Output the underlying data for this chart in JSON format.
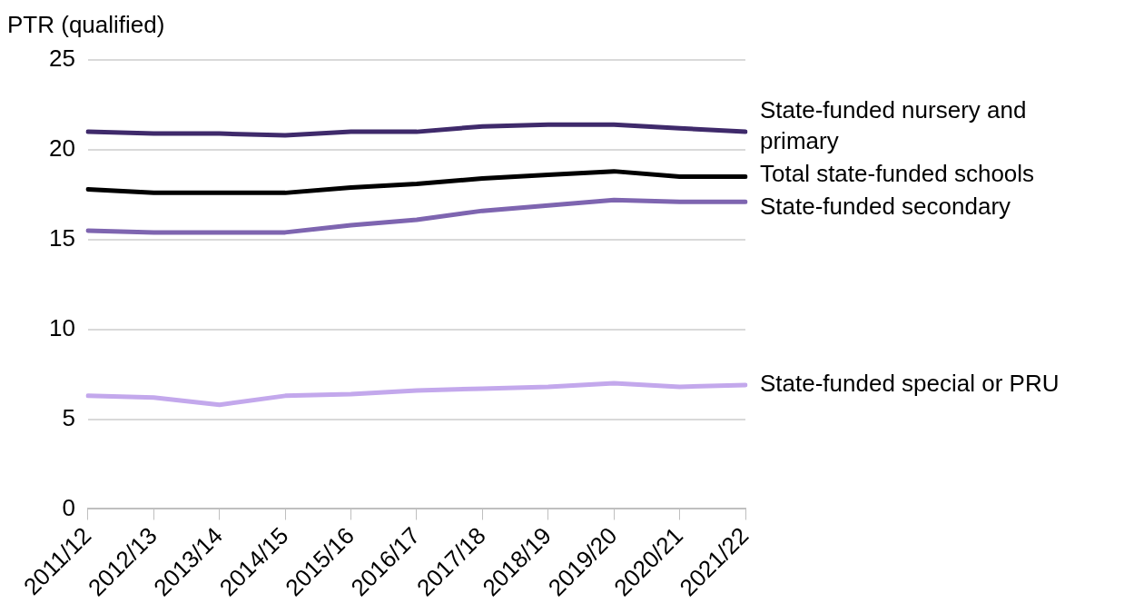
{
  "chart_data": {
    "type": "line",
    "ylabel": "PTR (qualified)",
    "categories": [
      "2011/12",
      "2012/13",
      "2013/14",
      "2014/15",
      "2015/16",
      "2016/17",
      "2017/18",
      "2018/19",
      "2019/20",
      "2020/21",
      "2021/22"
    ],
    "series": [
      {
        "name": "State-funded nursery and primary",
        "color": "#3f2a6b",
        "values": [
          21.0,
          20.9,
          20.9,
          20.8,
          21.0,
          21.0,
          21.3,
          21.4,
          21.4,
          21.2,
          21.0
        ]
      },
      {
        "name": "Total state-funded schools",
        "color": "#000000",
        "values": [
          17.8,
          17.6,
          17.6,
          17.6,
          17.9,
          18.1,
          18.4,
          18.6,
          18.8,
          18.5,
          18.5
        ]
      },
      {
        "name": "State-funded secondary",
        "color": "#7e65b0",
        "values": [
          15.5,
          15.4,
          15.4,
          15.4,
          15.8,
          16.1,
          16.6,
          16.9,
          17.2,
          17.1,
          17.1
        ]
      },
      {
        "name": "State-funded special or PRU",
        "color": "#c3a8ec",
        "values": [
          6.3,
          6.2,
          5.8,
          6.3,
          6.4,
          6.6,
          6.7,
          6.8,
          7.0,
          6.8,
          6.9
        ]
      }
    ],
    "ylim": [
      0,
      25
    ],
    "yticks": [
      0,
      5,
      10,
      15,
      20,
      25
    ],
    "grid": "y",
    "legend": false,
    "marker": "none",
    "line_style": "solid"
  }
}
